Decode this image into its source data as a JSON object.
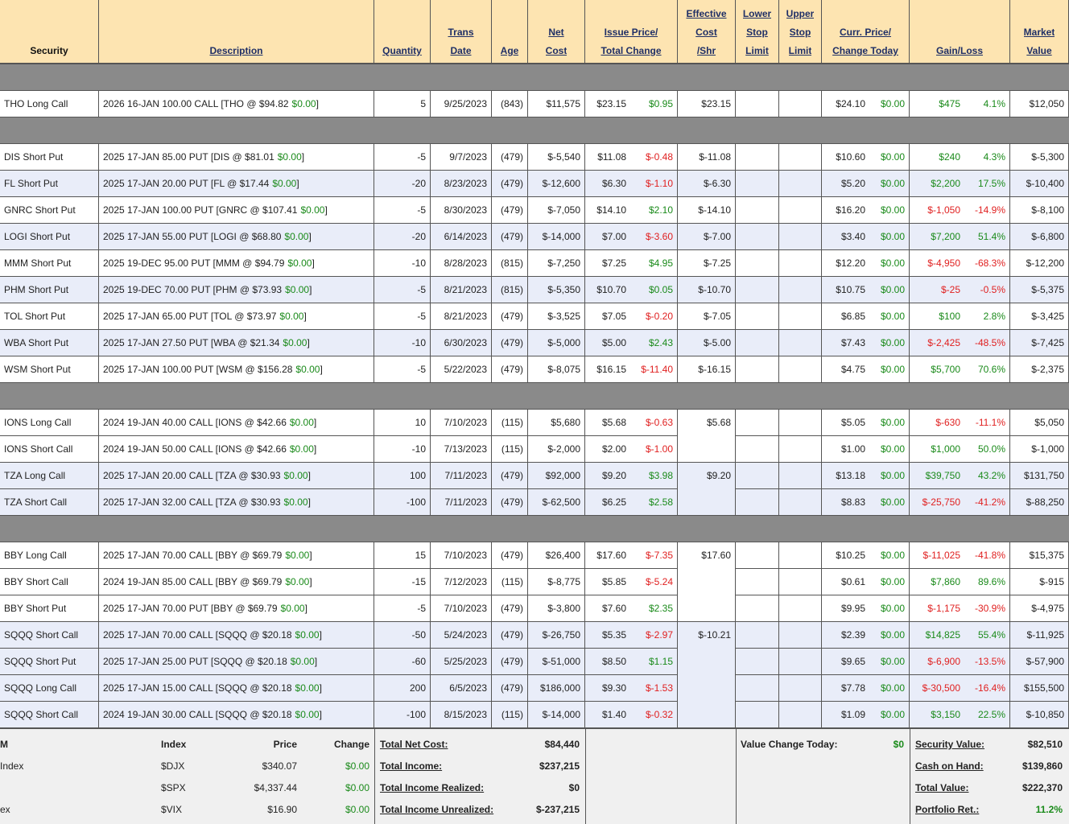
{
  "header": {
    "columns": [
      [
        "Security"
      ],
      [
        "Description"
      ],
      [
        "Quantity"
      ],
      [
        "Trans",
        "Date"
      ],
      [
        "Age"
      ],
      [
        "Net",
        "Cost"
      ],
      [
        "Issue Price/",
        "Total Change"
      ],
      [
        "Effective",
        "Cost",
        "/Shr"
      ],
      [
        "Lower",
        "Stop",
        "Limit"
      ],
      [
        "Upper",
        "Stop",
        "Limit"
      ],
      [
        "Curr. Price/",
        "Change Today"
      ],
      [
        "Gain/Loss"
      ],
      [
        "Market",
        "Value"
      ]
    ]
  },
  "sections": [
    [
      [
        "THO Long Call",
        [
          "2026 16-JAN 100.00 CALL [THO @ $94.82",
          "$0.00",
          "]"
        ],
        "5",
        "9/25/2023",
        "(843)",
        "$11,575",
        "$23.15",
        "$0.95",
        "$23.15",
        "$24.10",
        "$0.00",
        "$475",
        "4.1%",
        "$12,050"
      ]
    ],
    [
      [
        "DIS Short Put",
        [
          "2025 17-JAN 85.00 PUT [DIS @ $81.01",
          "$0.00",
          "]"
        ],
        "-5",
        "9/7/2023",
        "(479)",
        "$-5,540",
        "$11.08",
        "$-0.48",
        "$-11.08",
        "$10.60",
        "$0.00",
        "$240",
        "4.3%",
        "$-5,300"
      ],
      [
        "FL Short Put",
        [
          "2025 17-JAN 20.00 PUT [FL @ $17.44",
          "$0.00",
          "]"
        ],
        "-20",
        "8/23/2023",
        "(479)",
        "$-12,600",
        "$6.30",
        "$-1.10",
        "$-6.30",
        "$5.20",
        "$0.00",
        "$2,200",
        "17.5%",
        "$-10,400"
      ],
      [
        "GNRC Short Put",
        [
          "2025 17-JAN 100.00 PUT [GNRC @ $107.41",
          "$0.00",
          "]"
        ],
        "-5",
        "8/30/2023",
        "(479)",
        "$-7,050",
        "$14.10",
        "$2.10",
        "$-14.10",
        "$16.20",
        "$0.00",
        "$-1,050",
        "-14.9%",
        "$-8,100"
      ],
      [
        "LOGI Short Put",
        [
          "2025 17-JAN 55.00 PUT [LOGI @ $68.80",
          "$0.00",
          "]"
        ],
        "-20",
        "6/14/2023",
        "(479)",
        "$-14,000",
        "$7.00",
        "$-3.60",
        "$-7.00",
        "$3.40",
        "$0.00",
        "$7,200",
        "51.4%",
        "$-6,800"
      ],
      [
        "MMM Short Put",
        [
          "2025 19-DEC 95.00 PUT [MMM @ $94.79",
          "$0.00",
          "]"
        ],
        "-10",
        "8/28/2023",
        "(815)",
        "$-7,250",
        "$7.25",
        "$4.95",
        "$-7.25",
        "$12.20",
        "$0.00",
        "$-4,950",
        "-68.3%",
        "$-12,200"
      ],
      [
        "PHM Short Put",
        [
          "2025 19-DEC 70.00 PUT [PHM @ $73.93",
          "$0.00",
          "]"
        ],
        "-5",
        "8/21/2023",
        "(815)",
        "$-5,350",
        "$10.70",
        "$0.05",
        "$-10.70",
        "$10.75",
        "$0.00",
        "$-25",
        "-0.5%",
        "$-5,375"
      ],
      [
        "TOL Short Put",
        [
          "2025 17-JAN 65.00 PUT [TOL @ $73.97",
          "$0.00",
          "]"
        ],
        "-5",
        "8/21/2023",
        "(479)",
        "$-3,525",
        "$7.05",
        "$-0.20",
        "$-7.05",
        "$6.85",
        "$0.00",
        "$100",
        "2.8%",
        "$-3,425"
      ],
      [
        "WBA Short Put",
        [
          "2025 17-JAN 27.50 PUT [WBA @ $21.34",
          "$0.00",
          "]"
        ],
        "-10",
        "6/30/2023",
        "(479)",
        "$-5,000",
        "$5.00",
        "$2.43",
        "$-5.00",
        "$7.43",
        "$0.00",
        "$-2,425",
        "-48.5%",
        "$-7,425"
      ],
      [
        "WSM Short Put",
        [
          "2025 17-JAN 100.00 PUT [WSM @ $156.28",
          "$0.00",
          "]"
        ],
        "-5",
        "5/22/2023",
        "(479)",
        "$-8,075",
        "$16.15",
        "$-11.40",
        "$-16.15",
        "$4.75",
        "$0.00",
        "$5,700",
        "70.6%",
        "$-2,375"
      ]
    ],
    [
      [
        "IONS Long Call",
        [
          "2024 19-JAN 40.00 CALL [IONS @ $42.66",
          "$0.00",
          "]"
        ],
        "10",
        "7/10/2023",
        "(115)",
        "$5,680",
        "$5.68",
        "$-0.63",
        "$5.68",
        "$5.05",
        "$0.00",
        "$-630",
        "-11.1%",
        "$5,050"
      ],
      [
        "IONS Short Call",
        [
          "2024 19-JAN 50.00 CALL [IONS @ $42.66",
          "$0.00",
          "]"
        ],
        "-10",
        "7/13/2023",
        "(115)",
        "$-2,000",
        "$2.00",
        "$-1.00",
        null,
        "$1.00",
        "$0.00",
        "$1,000",
        "50.0%",
        "$-1,000"
      ],
      [
        "TZA Long Call",
        [
          "2025 17-JAN 20.00 CALL [TZA @ $30.93",
          "$0.00",
          "]"
        ],
        "100",
        "7/11/2023",
        "(479)",
        "$92,000",
        "$9.20",
        "$3.98",
        "$9.20",
        "$13.18",
        "$0.00",
        "$39,750",
        "43.2%",
        "$131,750"
      ],
      [
        "TZA Short Call",
        [
          "2025 17-JAN 32.00 CALL [TZA @ $30.93",
          "$0.00",
          "]"
        ],
        "-100",
        "7/11/2023",
        "(479)",
        "$-62,500",
        "$6.25",
        "$2.58",
        null,
        "$8.83",
        "$0.00",
        "$-25,750",
        "-41.2%",
        "$-88,250"
      ]
    ],
    [
      [
        "BBY Long Call",
        [
          "2025 17-JAN 70.00 CALL [BBY @ $69.79",
          "$0.00",
          "]"
        ],
        "15",
        "7/10/2023",
        "(479)",
        "$26,400",
        "$17.60",
        "$-7.35",
        "$17.60",
        "$10.25",
        "$0.00",
        "$-11,025",
        "-41.8%",
        "$15,375"
      ],
      [
        "BBY Short Call",
        [
          "2024 19-JAN 85.00 CALL [BBY @ $69.79",
          "$0.00",
          "]"
        ],
        "-15",
        "7/12/2023",
        "(115)",
        "$-8,775",
        "$5.85",
        "$-5.24",
        null,
        "$0.61",
        "$0.00",
        "$7,860",
        "89.6%",
        "$-915"
      ],
      [
        "BBY Short Put",
        [
          "2025 17-JAN 70.00 PUT [BBY @ $69.79",
          "$0.00",
          "]"
        ],
        "-5",
        "7/10/2023",
        "(479)",
        "$-3,800",
        "$7.60",
        "$2.35",
        null,
        "$9.95",
        "$0.00",
        "$-1,175",
        "-30.9%",
        "$-4,975"
      ],
      [
        "SQQQ Short Call",
        [
          "2025 17-JAN 70.00 CALL [SQQQ @ $20.18",
          "$0.00",
          "]"
        ],
        "-50",
        "5/24/2023",
        "(479)",
        "$-26,750",
        "$5.35",
        "$-2.97",
        "$-10.21",
        "$2.39",
        "$0.00",
        "$14,825",
        "55.4%",
        "$-11,925"
      ],
      [
        "SQQQ Short Put",
        [
          "2025 17-JAN 25.00 PUT [SQQQ @ $20.18",
          "$0.00",
          "]"
        ],
        "-60",
        "5/25/2023",
        "(479)",
        "$-51,000",
        "$8.50",
        "$1.15",
        null,
        "$9.65",
        "$0.00",
        "$-6,900",
        "-13.5%",
        "$-57,900"
      ],
      [
        "SQQQ Long Call",
        [
          "2025 17-JAN 15.00 CALL [SQQQ @ $20.18",
          "$0.00",
          "]"
        ],
        "200",
        "6/5/2023",
        "(479)",
        "$186,000",
        "$9.30",
        "$-1.53",
        null,
        "$7.78",
        "$0.00",
        "$-30,500",
        "-16.4%",
        "$155,500"
      ],
      [
        "SQQQ Short Call",
        [
          "2024 19-JAN 30.00 CALL [SQQQ @ $20.18",
          "$0.00",
          "]"
        ],
        "-100",
        "8/15/2023",
        "(115)",
        "$-14,000",
        "$1.40",
        "$-0.32",
        null,
        "$1.09",
        "$0.00",
        "$3,150",
        "22.5%",
        "$-10,850"
      ]
    ]
  ],
  "footer": {
    "indices": {
      "header": [
        "M",
        "Index",
        "Price",
        "Change"
      ],
      "rows": [
        [
          "Index",
          "$DJX",
          "$340.07",
          "$0.00"
        ],
        [
          null,
          "$SPX",
          "$4,337.44",
          "$0.00"
        ],
        [
          "ex",
          "$VIX",
          "$16.90",
          "$0.00"
        ]
      ]
    },
    "totals": [
      [
        "Total Net Cost:",
        "$84,440"
      ],
      [
        "Total Income:",
        "$237,215"
      ],
      [
        "Total Income Realized:",
        "$0"
      ],
      [
        "Total Income Unrealized:",
        "$-237,215"
      ]
    ],
    "value_change": [
      "Value Change Today:",
      "$0"
    ],
    "summary": [
      [
        "Security Value:",
        "$82,510"
      ],
      [
        "Cash on Hand:",
        "$139,860"
      ],
      [
        "Total Value:",
        "$222,370"
      ],
      [
        "Portfolio Ret.:",
        "11.2%"
      ]
    ]
  }
}
